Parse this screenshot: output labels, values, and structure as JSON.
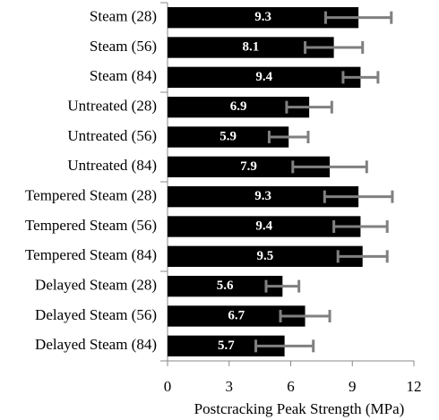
{
  "chart_data": {
    "type": "bar",
    "orientation": "horizontal",
    "x_label": "Postcracking Peak Strength (MPa)",
    "categories": [
      "Steam (28)",
      "Steam (56)",
      "Steam (84)",
      "Untreated (28)",
      "Untreated (56)",
      "Untreated (84)",
      "Tempered Steam (28)",
      "Tempered Steam (56)",
      "Tempered Steam (84)",
      "Delayed Steam (28)",
      "Delayed Steam (56)",
      "Delayed Steam (84)"
    ],
    "values": [
      9.3,
      8.1,
      9.4,
      6.9,
      5.9,
      7.9,
      9.3,
      9.4,
      9.5,
      5.6,
      6.7,
      5.7
    ],
    "errors": [
      1.6,
      1.4,
      0.85,
      1.1,
      0.95,
      1.8,
      1.65,
      1.3,
      1.2,
      0.8,
      1.2,
      1.4
    ],
    "color": "#000000",
    "error_color": "#808080",
    "xlim": [
      0,
      12
    ],
    "xticks": [
      0,
      3,
      6,
      9,
      12
    ],
    "grid": false
  }
}
